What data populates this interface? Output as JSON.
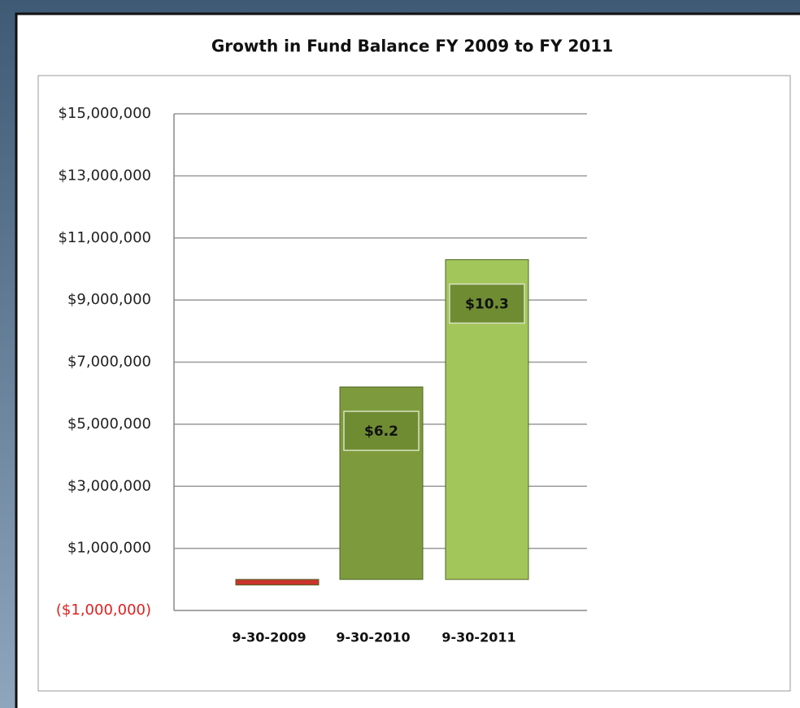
{
  "chart_data": {
    "type": "bar",
    "title": "Growth in Fund Balance FY 2009 to FY 2011",
    "categories": [
      "9-30-2009",
      "9-30-2010",
      "9-30-2011"
    ],
    "values": [
      -180000,
      6200000,
      10300000
    ],
    "value_labels": [
      null,
      "$6.2",
      "$10.3"
    ],
    "colors": [
      "#c8352b",
      "#7d9b3c",
      "#a3c65a"
    ],
    "ylim": [
      -1000000,
      15000000
    ],
    "yticks": [
      {
        "value": -1000000,
        "label": "($1,000,000)"
      },
      {
        "value": 1000000,
        "label": "$1,000,000"
      },
      {
        "value": 3000000,
        "label": "$3,000,000"
      },
      {
        "value": 5000000,
        "label": "$5,000,000"
      },
      {
        "value": 7000000,
        "label": "$7,000,000"
      },
      {
        "value": 9000000,
        "label": "$9,000,000"
      },
      {
        "value": 11000000,
        "label": "$11,000,000"
      },
      {
        "value": 13000000,
        "label": "$13,000,000"
      },
      {
        "value": 15000000,
        "label": "$15,000,000"
      }
    ],
    "grid": true
  }
}
